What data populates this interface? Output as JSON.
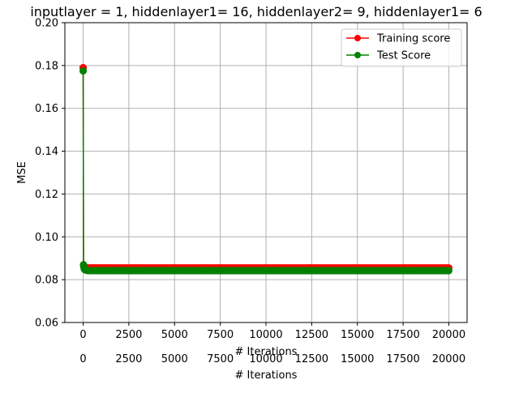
{
  "chart_data": {
    "type": "line",
    "title": "inputlayer = 1, hiddenlayer1= 16, hiddenlayer2= 9, hiddenlayer1= 6",
    "xlabel": "# Iterations",
    "xlabel_duplicate": "# Iterations",
    "ylabel": "MSE",
    "xlim": [
      -1000,
      21000
    ],
    "ylim": [
      0.06,
      0.2
    ],
    "xticks": [
      0,
      2500,
      5000,
      7500,
      10000,
      12500,
      15000,
      17500,
      20000
    ],
    "yticks": [
      0.06,
      0.08,
      0.1,
      0.12,
      0.14,
      0.16,
      0.18,
      0.2
    ],
    "ytick_labels": [
      "0.06",
      "0.08",
      "0.10",
      "0.12",
      "0.14",
      "0.16",
      "0.18",
      "0.20"
    ],
    "grid": true,
    "legend_position": "top-right",
    "series": [
      {
        "name": "Training score",
        "color": "#ff0000",
        "marker": "circle",
        "x": [
          0,
          20,
          40,
          60,
          100,
          200,
          400,
          800,
          1500,
          3000,
          5000,
          7500,
          10000,
          12500,
          15000,
          17500,
          20000
        ],
        "y": [
          0.179,
          0.0868,
          0.0862,
          0.0858,
          0.0856,
          0.0855,
          0.0855,
          0.0855,
          0.0855,
          0.0855,
          0.0855,
          0.0855,
          0.0855,
          0.0855,
          0.0855,
          0.0855,
          0.0855
        ]
      },
      {
        "name": "Test Score",
        "color": "#008000",
        "marker": "circle",
        "x": [
          0,
          20,
          40,
          60,
          100,
          200,
          400,
          800,
          1500,
          3000,
          5000,
          7500,
          10000,
          12500,
          15000,
          17500,
          20000
        ],
        "y": [
          0.1775,
          0.087,
          0.0858,
          0.085,
          0.0846,
          0.0843,
          0.0842,
          0.0842,
          0.0842,
          0.0842,
          0.0842,
          0.0842,
          0.0842,
          0.0842,
          0.0842,
          0.0842,
          0.0842
        ]
      }
    ]
  }
}
